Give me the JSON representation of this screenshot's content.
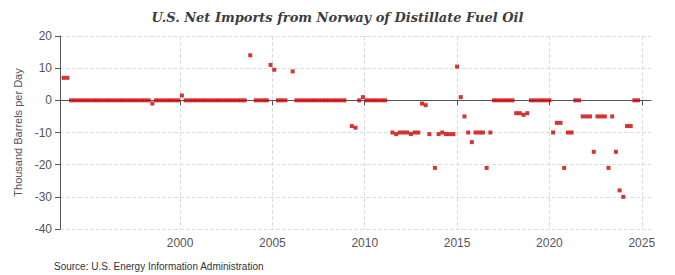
{
  "chart_data": {
    "type": "scatter",
    "title": "U.S. Net Imports from Norway of Distillate Fuel Oil",
    "y_label": "Thousand Barrels per Day",
    "annotations": [
      "Source: U.S. Energy Information Administration"
    ],
    "color": "#cc0000",
    "marker": "square",
    "grid": true,
    "xlim": [
      1993.5,
      2025.5
    ],
    "xticks": [
      2000,
      2005,
      2010,
      2015,
      2020,
      2025
    ],
    "ylim": [
      -40,
      20
    ],
    "yticks": [
      -40,
      -30,
      -20,
      -10,
      0,
      10,
      20
    ],
    "x": [
      1993.7,
      1993.9,
      1994.1,
      1994.3,
      1994.5,
      1994.7,
      1994.9,
      1995.1,
      1995.3,
      1995.5,
      1995.7,
      1995.9,
      1996.1,
      1996.3,
      1996.5,
      1996.7,
      1996.9,
      1997.1,
      1997.3,
      1997.5,
      1997.7,
      1997.9,
      1998.1,
      1998.3,
      1998.5,
      1998.7,
      1998.9,
      1999.1,
      1999.3,
      1999.5,
      1999.7,
      1999.9,
      2000.1,
      2000.3,
      2000.5,
      2000.7,
      2000.9,
      2001.1,
      2001.3,
      2001.5,
      2001.7,
      2001.9,
      2002.1,
      2002.3,
      2002.5,
      2002.7,
      2002.9,
      2003.1,
      2003.3,
      2003.5,
      2003.8,
      2004.1,
      2004.3,
      2004.5,
      2004.7,
      2004.9,
      2005.1,
      2005.3,
      2005.5,
      2005.7,
      2006.1,
      2006.3,
      2006.5,
      2006.7,
      2006.9,
      2007.1,
      2007.3,
      2007.5,
      2007.7,
      2007.9,
      2008.1,
      2008.3,
      2008.5,
      2008.7,
      2008.9,
      2009.3,
      2009.5,
      2009.7,
      2009.9,
      2010.1,
      2010.3,
      2010.5,
      2010.7,
      2010.9,
      2011.1,
      2011.5,
      2011.7,
      2011.9,
      2012.1,
      2012.3,
      2012.5,
      2012.7,
      2012.9,
      2013.1,
      2013.3,
      2013.5,
      2013.8,
      2014.0,
      2014.2,
      2014.4,
      2014.6,
      2014.8,
      2015.0,
      2015.2,
      2015.4,
      2015.6,
      2015.8,
      2016.0,
      2016.2,
      2016.4,
      2016.6,
      2016.8,
      2017.0,
      2017.2,
      2017.4,
      2017.6,
      2017.8,
      2018.0,
      2018.2,
      2018.4,
      2018.6,
      2018.8,
      2019.0,
      2019.2,
      2019.4,
      2019.6,
      2019.8,
      2020.0,
      2020.2,
      2020.4,
      2020.6,
      2020.8,
      2021.0,
      2021.2,
      2021.4,
      2021.6,
      2021.8,
      2022.0,
      2022.2,
      2022.4,
      2022.6,
      2022.8,
      2023.0,
      2023.2,
      2023.4,
      2023.6,
      2023.8,
      2024.0,
      2024.2,
      2024.4,
      2024.6,
      2024.8
    ],
    "values": [
      7.0,
      7.0,
      0.0,
      0.0,
      0.0,
      0.0,
      0.0,
      0.0,
      0.0,
      0.0,
      0.0,
      0.0,
      0.0,
      0.0,
      0.0,
      0.0,
      0.0,
      0.0,
      0.0,
      0.0,
      0.0,
      0.0,
      0.0,
      0.0,
      -1.0,
      0.0,
      0.0,
      0.0,
      0.0,
      0.0,
      0.0,
      0.0,
      1.5,
      0.0,
      0.0,
      0.0,
      0.0,
      0.0,
      0.0,
      0.0,
      0.0,
      0.0,
      0.0,
      0.0,
      0.0,
      0.0,
      0.0,
      0.0,
      0.0,
      0.0,
      14.0,
      0.0,
      0.0,
      0.0,
      0.0,
      11.0,
      9.5,
      0.0,
      0.0,
      0.0,
      9.0,
      0.0,
      0.0,
      0.0,
      0.0,
      0.0,
      0.0,
      0.0,
      0.0,
      0.0,
      0.0,
      0.0,
      0.0,
      0.0,
      0.0,
      -8.0,
      -8.5,
      0.0,
      1.0,
      0.0,
      0.0,
      0.0,
      0.0,
      0.0,
      0.0,
      -10.0,
      -10.5,
      -10.0,
      -10.0,
      -10.0,
      -10.5,
      -10.0,
      -10.0,
      -1.0,
      -1.5,
      -10.5,
      -21.0,
      -10.5,
      -10.0,
      -10.5,
      -10.5,
      -10.5,
      10.5,
      1.0,
      -5.0,
      -10.0,
      -13.0,
      -10.0,
      -10.0,
      -10.0,
      -21.0,
      -10.0,
      0.0,
      0.0,
      0.0,
      0.0,
      0.0,
      0.0,
      -4.0,
      -4.0,
      -4.5,
      -4.0,
      0.0,
      0.0,
      0.0,
      0.0,
      0.0,
      0.0,
      -10.0,
      -7.0,
      -7.0,
      -21.0,
      -10.0,
      -10.0,
      0.0,
      0.0,
      -5.0,
      -5.0,
      -5.0,
      -16.0,
      -5.0,
      -5.0,
      -5.0,
      -21.0,
      -5.0,
      -16.0,
      -28.0,
      -30.0,
      -8.0,
      -8.0,
      0.0,
      0.0
    ]
  }
}
